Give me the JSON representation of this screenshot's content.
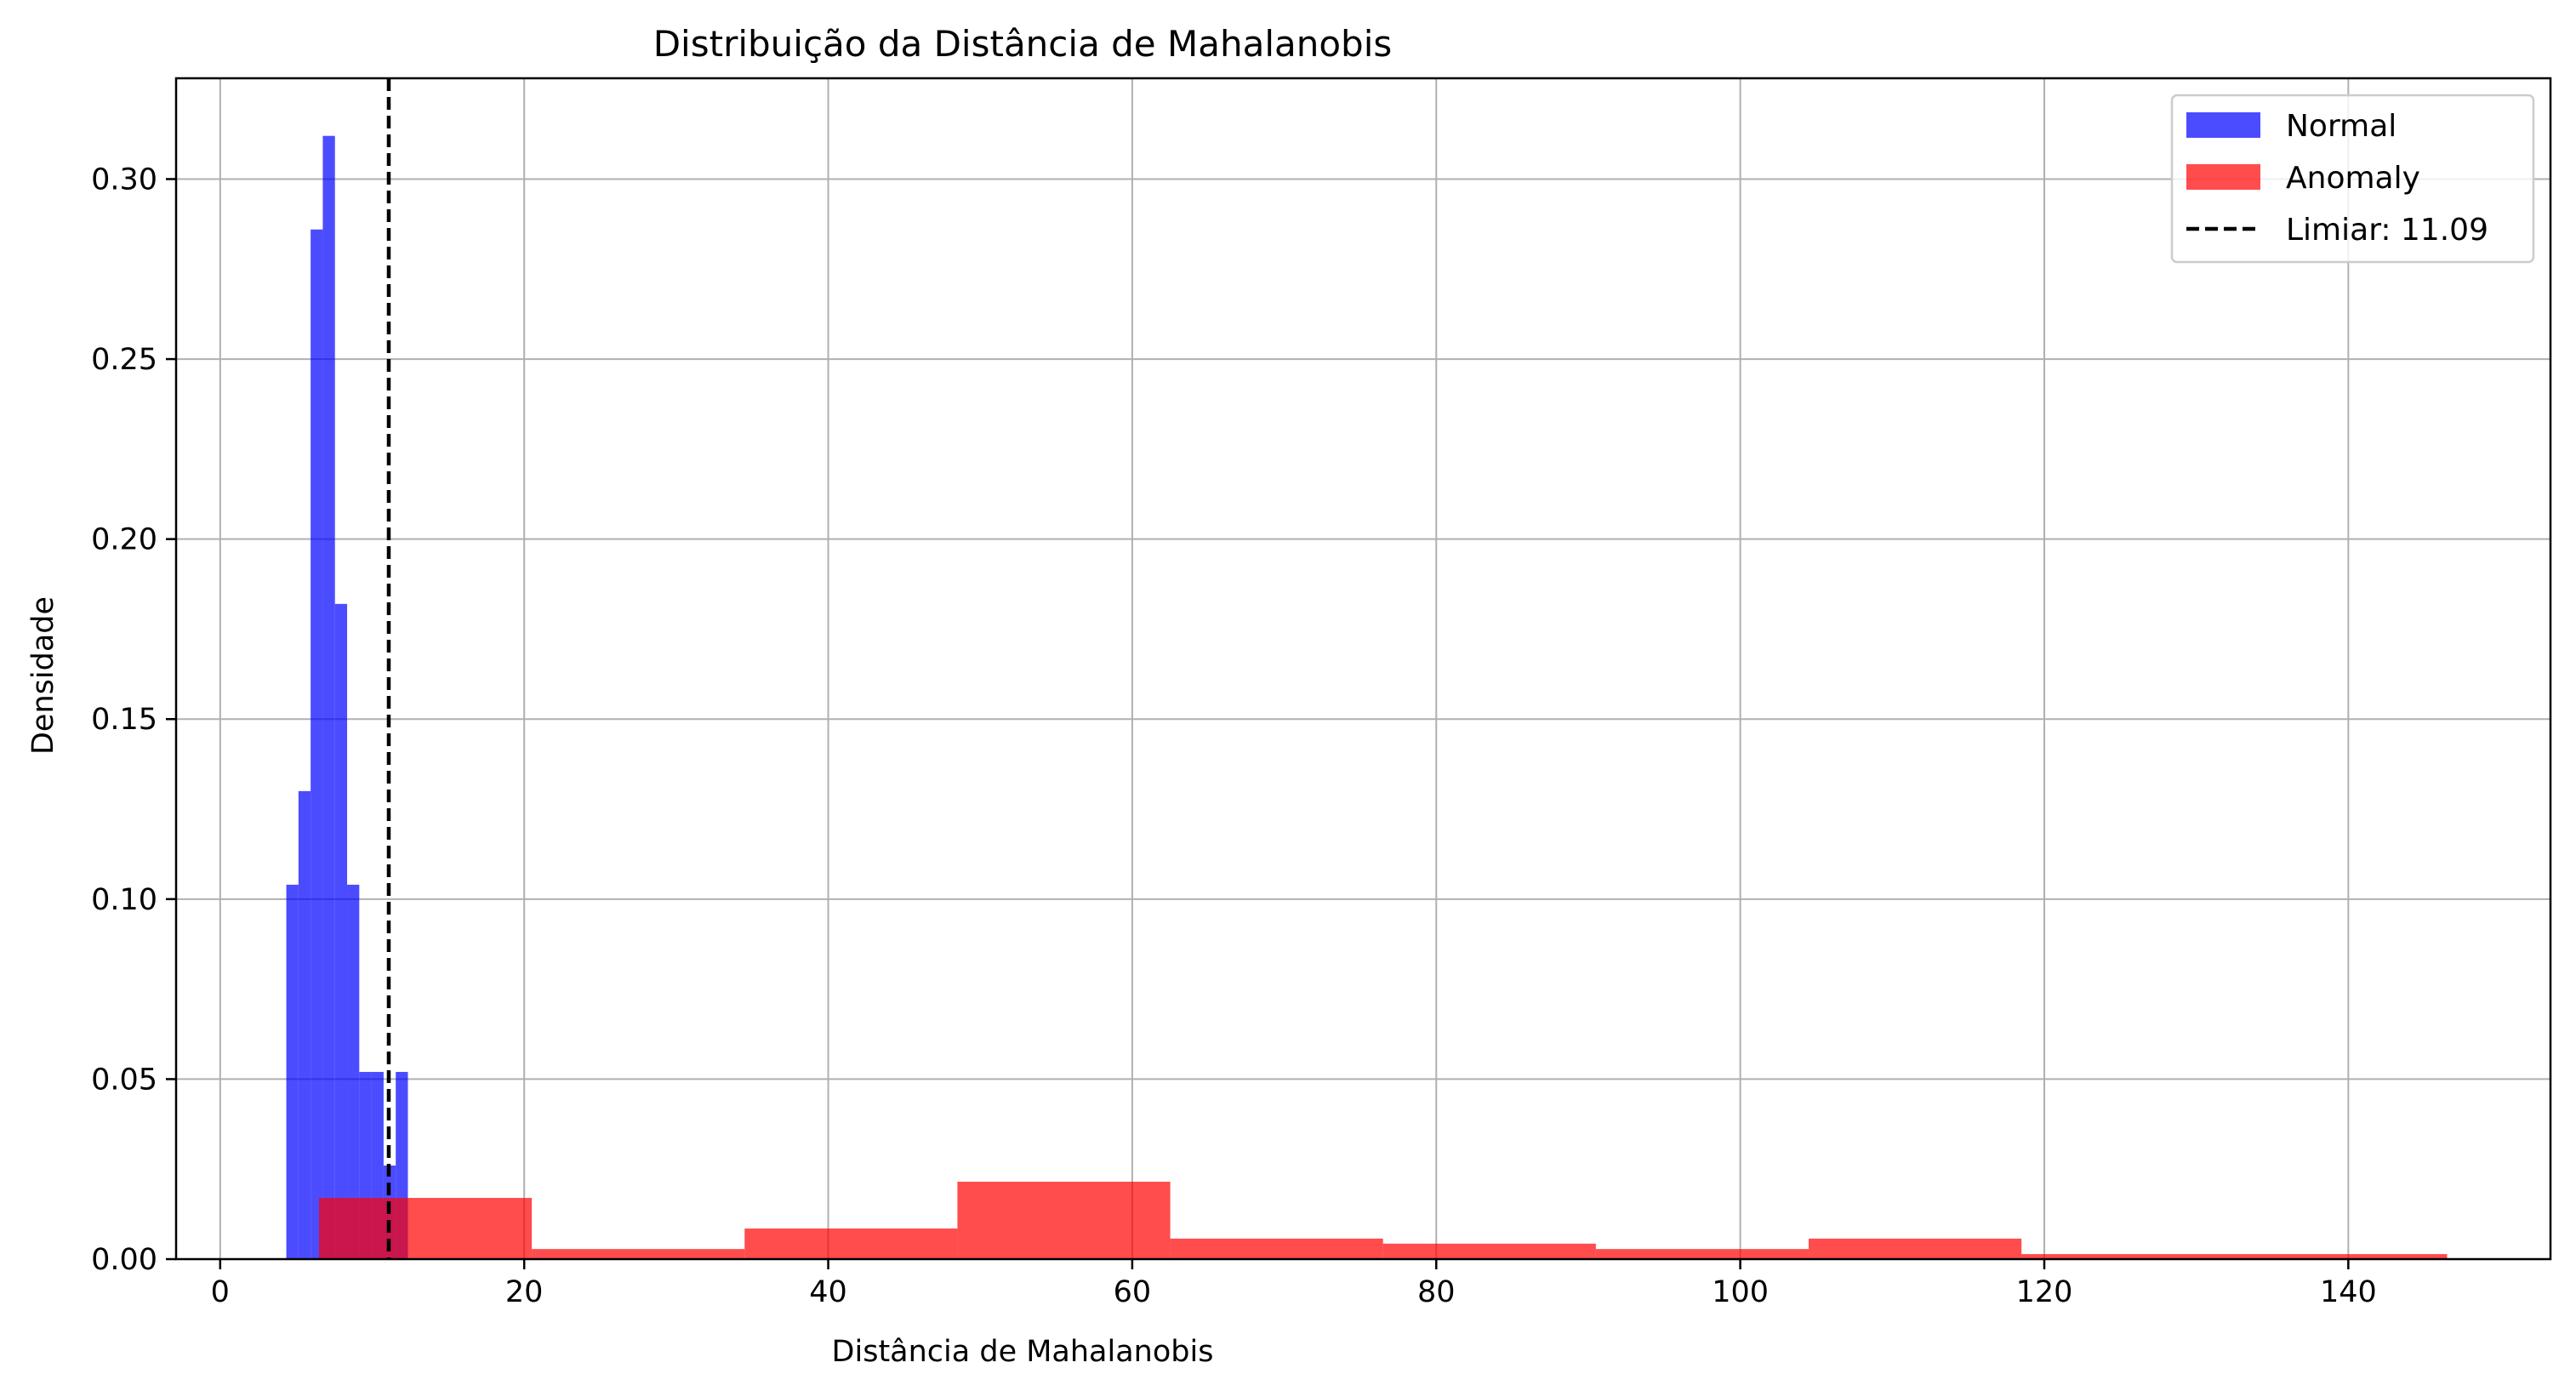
{
  "chart_data": {
    "type": "histogram",
    "title": "Distribuição da Distância de Mahalanobis",
    "xlabel": "Distância de Mahalanobis",
    "ylabel": "Densidade",
    "xlim": [
      -2.9,
      153.3
    ],
    "ylim": [
      0,
      0.328
    ],
    "xticks": [
      0,
      20,
      40,
      60,
      80,
      100,
      120,
      140
    ],
    "yticks": [
      0.0,
      0.05,
      0.1,
      0.15,
      0.2,
      0.25,
      0.3
    ],
    "ytick_labels": [
      "0.00",
      "0.05",
      "0.10",
      "0.15",
      "0.20",
      "0.25",
      "0.30"
    ],
    "grid": true,
    "legend_position": "top-right",
    "series": [
      {
        "name": "Normal",
        "color": "#0000ff",
        "alpha": 0.7,
        "bins": [
          {
            "x0": 4.35,
            "x1": 5.15,
            "y": 0.104
          },
          {
            "x0": 5.15,
            "x1": 5.95,
            "y": 0.13
          },
          {
            "x0": 5.95,
            "x1": 6.75,
            "y": 0.286
          },
          {
            "x0": 6.75,
            "x1": 7.55,
            "y": 0.312
          },
          {
            "x0": 7.55,
            "x1": 8.35,
            "y": 0.182
          },
          {
            "x0": 8.35,
            "x1": 9.15,
            "y": 0.104
          },
          {
            "x0": 9.15,
            "x1": 9.95,
            "y": 0.052
          },
          {
            "x0": 9.95,
            "x1": 10.75,
            "y": 0.052
          },
          {
            "x0": 10.75,
            "x1": 11.55,
            "y": 0.026
          },
          {
            "x0": 11.55,
            "x1": 12.35,
            "y": 0.052
          }
        ]
      },
      {
        "name": "Anomaly",
        "color": "#ff0000",
        "alpha": 0.7,
        "bins": [
          {
            "x0": 6.5,
            "x1": 20.5,
            "y": 0.017
          },
          {
            "x0": 20.5,
            "x1": 34.5,
            "y": 0.0028
          },
          {
            "x0": 34.5,
            "x1": 48.5,
            "y": 0.0085
          },
          {
            "x0": 48.5,
            "x1": 62.5,
            "y": 0.0215
          },
          {
            "x0": 62.5,
            "x1": 76.5,
            "y": 0.0057
          },
          {
            "x0": 76.5,
            "x1": 90.5,
            "y": 0.0043
          },
          {
            "x0": 90.5,
            "x1": 104.5,
            "y": 0.0028
          },
          {
            "x0": 104.5,
            "x1": 118.5,
            "y": 0.0057
          },
          {
            "x0": 118.5,
            "x1": 146.5,
            "y": 0.0014
          }
        ]
      }
    ],
    "threshold": {
      "label": "Limiar: 11.09",
      "value": 11.09,
      "color": "#000000",
      "style": "dashed"
    }
  }
}
